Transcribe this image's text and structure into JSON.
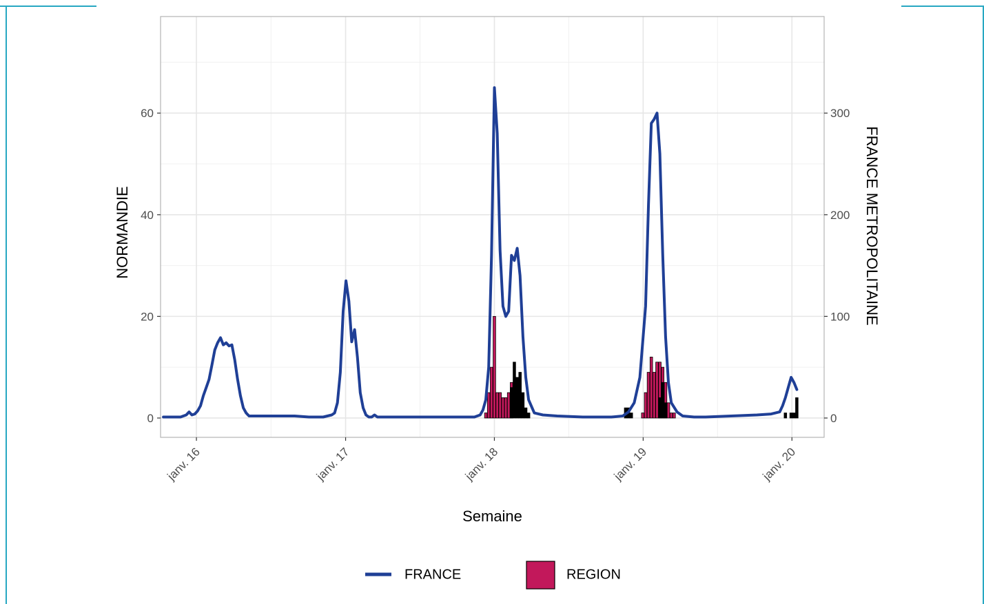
{
  "chart_data": {
    "type": "bar+line",
    "title": "",
    "xlabel": "Semaine",
    "ylabel_left": "NORMANDIE",
    "ylabel_right": "FRANCE METROPOLITAINE",
    "x_ticks": [
      "janv. 16",
      "janv. 17",
      "janv. 18",
      "janv. 19",
      "janv. 20"
    ],
    "x_tick_dates": [
      "2016-01-01",
      "2017-01-01",
      "2018-01-01",
      "2019-01-01",
      "2020-01-01"
    ],
    "xlim": [
      "2015-10-05",
      "2020-03-20"
    ],
    "y_left_ticks": [
      "0",
      "20",
      "40",
      "60"
    ],
    "y_left_lim": [
      -3.8,
      79
    ],
    "y_right_ticks": [
      "0",
      "100",
      "200",
      "300"
    ],
    "y_right_lim": [
      -19,
      395
    ],
    "grid": true,
    "legend_position": "bottom",
    "legend": [
      {
        "key": "france",
        "label": "FRANCE",
        "kind": "line",
        "color": "#1F3F96"
      },
      {
        "key": "region",
        "label": "REGION",
        "kind": "bar",
        "color": "#C2185B"
      }
    ],
    "series": [
      {
        "name": "FRANCE",
        "kind": "line",
        "axis": "right",
        "color": "#1F3F96",
        "points": [
          [
            "2015-10-12",
            1
          ],
          [
            "2015-10-26",
            1
          ],
          [
            "2015-11-09",
            1
          ],
          [
            "2015-11-23",
            1
          ],
          [
            "2015-12-07",
            3
          ],
          [
            "2015-12-14",
            6
          ],
          [
            "2015-12-21",
            3
          ],
          [
            "2015-12-28",
            4
          ],
          [
            "2016-01-04",
            7
          ],
          [
            "2016-01-11",
            12
          ],
          [
            "2016-01-18",
            22
          ],
          [
            "2016-01-25",
            30
          ],
          [
            "2016-02-01",
            38
          ],
          [
            "2016-02-08",
            52
          ],
          [
            "2016-02-15",
            67
          ],
          [
            "2016-02-22",
            74
          ],
          [
            "2016-02-29",
            79
          ],
          [
            "2016-03-07",
            72
          ],
          [
            "2016-03-14",
            74
          ],
          [
            "2016-03-21",
            71
          ],
          [
            "2016-03-28",
            72
          ],
          [
            "2016-04-04",
            57
          ],
          [
            "2016-04-11",
            38
          ],
          [
            "2016-04-18",
            22
          ],
          [
            "2016-04-25",
            10
          ],
          [
            "2016-05-02",
            5
          ],
          [
            "2016-05-09",
            2
          ],
          [
            "2016-05-30",
            2
          ],
          [
            "2016-07-04",
            2
          ],
          [
            "2016-08-29",
            2
          ],
          [
            "2016-10-03",
            1
          ],
          [
            "2016-11-07",
            1
          ],
          [
            "2016-11-28",
            3
          ],
          [
            "2016-12-05",
            5
          ],
          [
            "2016-12-12",
            15
          ],
          [
            "2016-12-19",
            45
          ],
          [
            "2016-12-26",
            105
          ],
          [
            "2017-01-02",
            135
          ],
          [
            "2017-01-09",
            115
          ],
          [
            "2017-01-16",
            75
          ],
          [
            "2017-01-23",
            87
          ],
          [
            "2017-01-30",
            60
          ],
          [
            "2017-02-06",
            25
          ],
          [
            "2017-02-13",
            10
          ],
          [
            "2017-02-20",
            3
          ],
          [
            "2017-02-27",
            1
          ],
          [
            "2017-03-06",
            1
          ],
          [
            "2017-03-13",
            3
          ],
          [
            "2017-03-20",
            1
          ],
          [
            "2017-04-17",
            1
          ],
          [
            "2017-06-05",
            1
          ],
          [
            "2017-08-07",
            1
          ],
          [
            "2017-10-09",
            1
          ],
          [
            "2017-11-13",
            1
          ],
          [
            "2017-11-27",
            3
          ],
          [
            "2017-12-04",
            8
          ],
          [
            "2017-12-11",
            18
          ],
          [
            "2017-12-18",
            50
          ],
          [
            "2017-12-25",
            160
          ],
          [
            "2018-01-01",
            325
          ],
          [
            "2018-01-08",
            280
          ],
          [
            "2018-01-15",
            165
          ],
          [
            "2018-01-22",
            110
          ],
          [
            "2018-01-29",
            100
          ],
          [
            "2018-02-05",
            105
          ],
          [
            "2018-02-12",
            160
          ],
          [
            "2018-02-19",
            155
          ],
          [
            "2018-02-26",
            167
          ],
          [
            "2018-03-05",
            140
          ],
          [
            "2018-03-12",
            80
          ],
          [
            "2018-03-19",
            40
          ],
          [
            "2018-03-26",
            18
          ],
          [
            "2018-04-09",
            5
          ],
          [
            "2018-04-30",
            3
          ],
          [
            "2018-06-04",
            2
          ],
          [
            "2018-08-06",
            1
          ],
          [
            "2018-10-15",
            1
          ],
          [
            "2018-11-12",
            2
          ],
          [
            "2018-11-26",
            6
          ],
          [
            "2018-12-10",
            15
          ],
          [
            "2018-12-24",
            40
          ],
          [
            "2019-01-07",
            110
          ],
          [
            "2019-01-14",
            210
          ],
          [
            "2019-01-21",
            290
          ],
          [
            "2019-01-28",
            294
          ],
          [
            "2019-02-04",
            300
          ],
          [
            "2019-02-11",
            260
          ],
          [
            "2019-02-18",
            160
          ],
          [
            "2019-02-25",
            80
          ],
          [
            "2019-03-04",
            35
          ],
          [
            "2019-03-11",
            15
          ],
          [
            "2019-03-25",
            6
          ],
          [
            "2019-04-08",
            2
          ],
          [
            "2019-05-06",
            1
          ],
          [
            "2019-06-03",
            1
          ],
          [
            "2019-08-05",
            2
          ],
          [
            "2019-10-07",
            3
          ],
          [
            "2019-11-11",
            4
          ],
          [
            "2019-12-02",
            6
          ],
          [
            "2019-12-09",
            12
          ],
          [
            "2019-12-16",
            20
          ],
          [
            "2019-12-23",
            30
          ],
          [
            "2019-12-30",
            40
          ],
          [
            "2020-01-06",
            35
          ],
          [
            "2020-01-13",
            28
          ]
        ]
      },
      {
        "name": "REGION",
        "kind": "bar",
        "axis": "left",
        "color": "#C2185B",
        "bars": [
          [
            "2017-12-11",
            1
          ],
          [
            "2017-12-18",
            5
          ],
          [
            "2017-12-25",
            10
          ],
          [
            "2018-01-01",
            20
          ],
          [
            "2018-01-08",
            5
          ],
          [
            "2018-01-15",
            5
          ],
          [
            "2018-01-22",
            4
          ],
          [
            "2018-01-29",
            4
          ],
          [
            "2018-02-05",
            5
          ],
          [
            "2018-02-12",
            7
          ],
          [
            "2018-12-31",
            1
          ],
          [
            "2019-01-07",
            5
          ],
          [
            "2019-01-14",
            9
          ],
          [
            "2019-01-21",
            12
          ],
          [
            "2019-01-28",
            9
          ],
          [
            "2019-02-04",
            11
          ],
          [
            "2019-02-11",
            11
          ],
          [
            "2019-02-18",
            10
          ],
          [
            "2019-02-25",
            7
          ],
          [
            "2019-03-04",
            3
          ],
          [
            "2019-03-11",
            1
          ],
          [
            "2019-03-18",
            1
          ]
        ]
      },
      {
        "kind": "bar",
        "axis": "left",
        "color": "#000000",
        "bars": [
          [
            "2018-02-12",
            6
          ],
          [
            "2018-02-19",
            11
          ],
          [
            "2018-02-26",
            8
          ],
          [
            "2018-03-05",
            9
          ],
          [
            "2018-03-12",
            5
          ],
          [
            "2018-03-19",
            2
          ],
          [
            "2018-03-26",
            1
          ],
          [
            "2018-11-19",
            2
          ],
          [
            "2018-11-26",
            2
          ],
          [
            "2018-12-03",
            1
          ],
          [
            "2019-02-11",
            4
          ],
          [
            "2019-02-18",
            7
          ],
          [
            "2019-02-25",
            3
          ],
          [
            "2019-12-16",
            1
          ],
          [
            "2019-12-30",
            1
          ],
          [
            "2020-01-06",
            1
          ],
          [
            "2020-01-13",
            4
          ]
        ]
      }
    ]
  }
}
